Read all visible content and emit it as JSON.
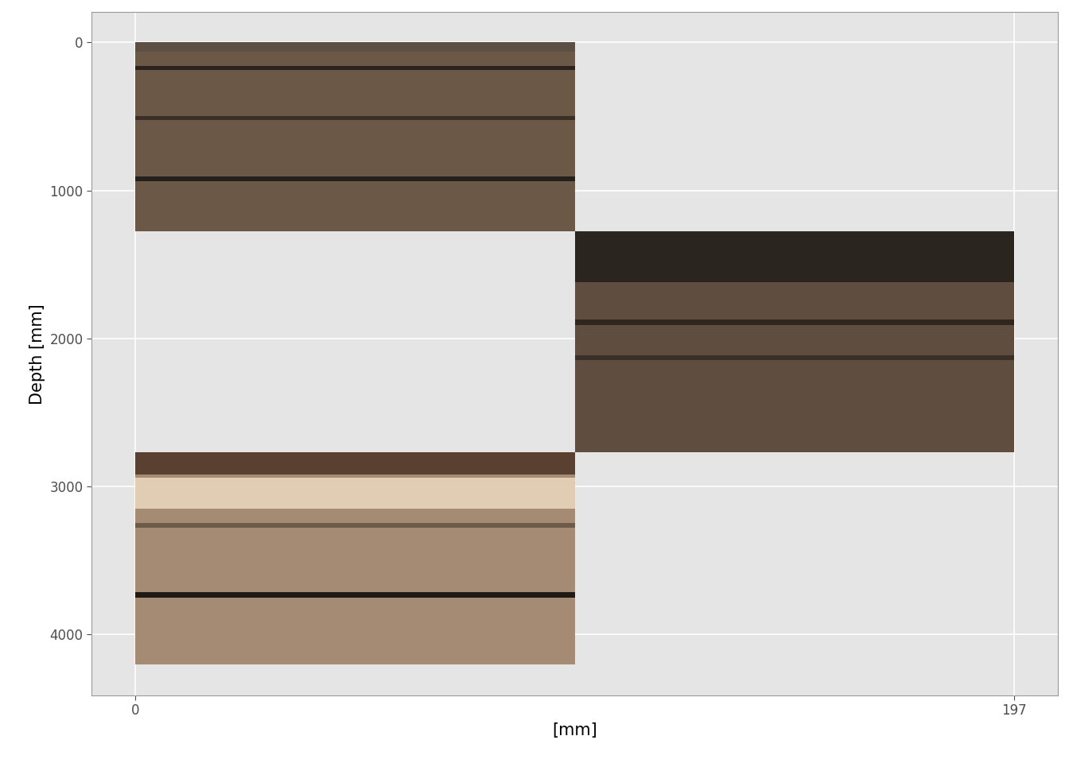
{
  "chart_data": {
    "type": "core_image",
    "x_label": "[mm]",
    "y_label": "Depth [mm]",
    "xlim": [
      -9.85,
      206.85
    ],
    "xticks": [
      0,
      197
    ],
    "ylim": [
      4413,
      -204
    ],
    "yticks": [
      0,
      1000,
      2000,
      3000,
      4000
    ],
    "grid": true,
    "sections": [
      {
        "x": [
          0,
          98.5
        ],
        "top": 0,
        "bottom": 1278,
        "color": "#6b5846",
        "bands": [
          {
            "top": 160,
            "bottom": 185,
            "color": "#2a231d"
          },
          {
            "top": 495,
            "bottom": 525,
            "color": "#3b3027"
          },
          {
            "top": 905,
            "bottom": 940,
            "color": "#24201b"
          },
          {
            "top": 0,
            "bottom": 60,
            "color": "#5c5044"
          }
        ]
      },
      {
        "x": [
          98.5,
          197
        ],
        "top": 1278,
        "bottom": 2770,
        "color": "#5f4e40",
        "bands": [
          {
            "top": 1278,
            "bottom": 1620,
            "color": "#2b251f"
          },
          {
            "top": 1870,
            "bottom": 1910,
            "color": "#2e261f"
          },
          {
            "top": 2115,
            "bottom": 2145,
            "color": "#3a3028"
          }
        ]
      },
      {
        "x": [
          0,
          98.5
        ],
        "top": 2770,
        "bottom": 4204,
        "color": "#a58b74",
        "bands": [
          {
            "top": 2770,
            "bottom": 2920,
            "color": "#5a4030"
          },
          {
            "top": 2940,
            "bottom": 3150,
            "color": "#e0cdb3"
          },
          {
            "top": 3250,
            "bottom": 3280,
            "color": "#6e5a48"
          },
          {
            "top": 3715,
            "bottom": 3750,
            "color": "#1f1a16"
          }
        ]
      }
    ]
  }
}
